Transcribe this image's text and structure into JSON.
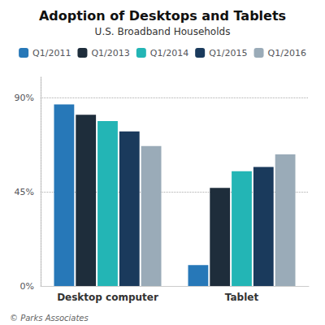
{
  "chart_data": {
    "type": "bar",
    "title": "Adoption of Desktops and Tablets",
    "subtitle": "U.S. Broadband Households",
    "annotations": [
      "© Parks Associates"
    ],
    "categories": [
      "Desktop computer",
      "Tablet"
    ],
    "series": [
      {
        "name": "Q1/2011",
        "color": "#2778b8",
        "values": [
          87,
          10
        ]
      },
      {
        "name": "Q1/2013",
        "color": "#1e2d3b",
        "values": [
          82,
          47
        ]
      },
      {
        "name": "Q1/2014",
        "color": "#23b5b5",
        "values": [
          79,
          55
        ]
      },
      {
        "name": "Q1/2015",
        "color": "#1a3a5c",
        "values": [
          74,
          57
        ]
      },
      {
        "name": "Q1/2016",
        "color": "#9aabb8",
        "values": [
          67,
          63
        ]
      }
    ],
    "ylim": [
      0,
      100
    ],
    "yticks": [
      {
        "value": 0,
        "label": "0%"
      },
      {
        "value": 45,
        "label": "45%"
      },
      {
        "value": 90,
        "label": "90%"
      }
    ],
    "grid": true,
    "legend": "top"
  }
}
